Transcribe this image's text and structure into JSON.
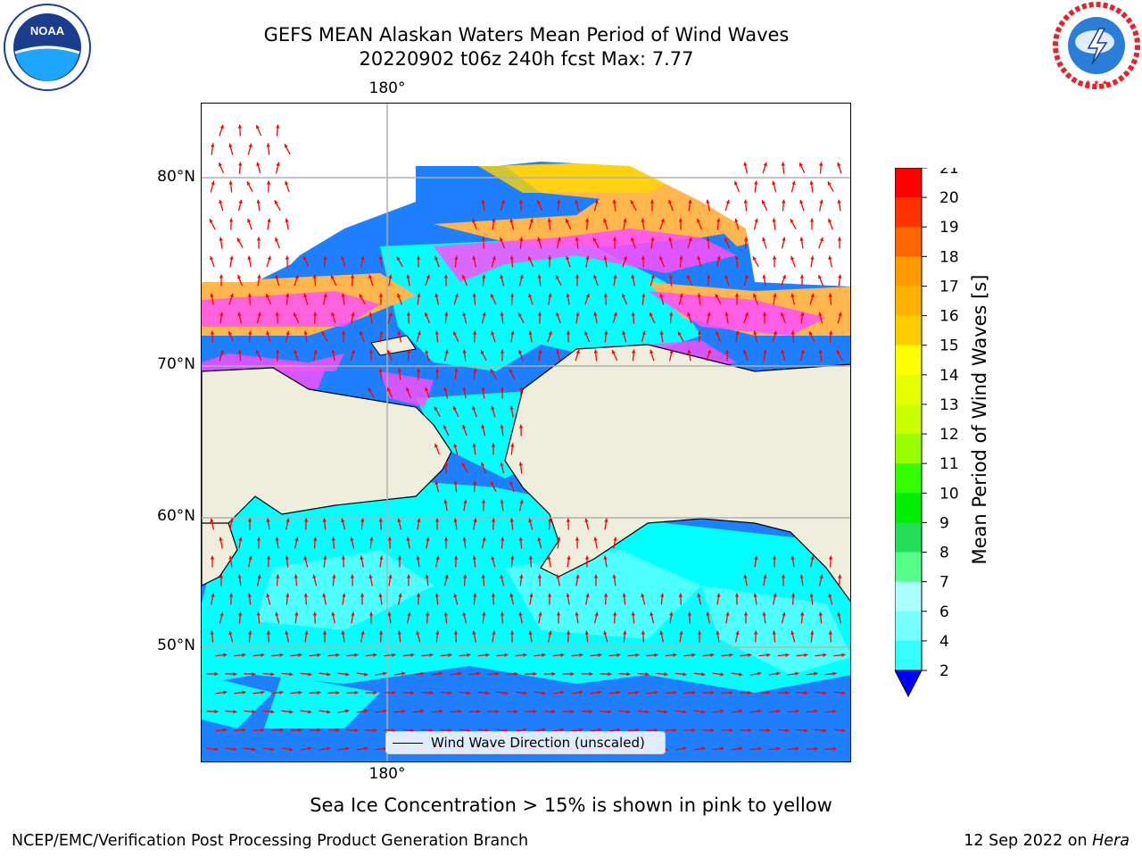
{
  "title": {
    "line1": "GEFS MEAN Alaskan Waters Mean Period of Wind Waves",
    "line2": "20220902 t06z 240h fcst   Max: 7.77"
  },
  "logos": {
    "left": {
      "icon": "noaa-logo-icon",
      "text": "NOAA",
      "ring_text": "NATIONAL OCEANIC AND ATMOSPHERIC ADMINISTRATION · U.S. DEPARTMENT OF COMMERCE"
    },
    "right": {
      "icon": "nws-logo-icon",
      "ring_text": "NATIONAL WEATHER SERVICE"
    }
  },
  "map": {
    "lon_labels": {
      "top": "180°",
      "bottom": "180°"
    },
    "lat_labels": [
      "80°N",
      "70°N",
      "60°N",
      "50°N"
    ],
    "legend_text": "Wind Wave Direction (unscaled)",
    "colors": {
      "ocean_low": "#1e7fff",
      "ocean_mid": "#00ffff",
      "ocean_high": "#4dffff",
      "land": "#efeedc",
      "ice_pink": "#ff4dff",
      "ice_orange": "#ffb74d",
      "ice_yellow": "#ffd700",
      "arrow": "#ff0000"
    }
  },
  "colorbar": {
    "label": "Mean Period of Wind Waves [s]",
    "ticks": [
      "21",
      "20",
      "19",
      "18",
      "17",
      "16",
      "15",
      "14",
      "13",
      "12",
      "11",
      "10",
      "9",
      "8",
      "7",
      "6",
      "4",
      "2"
    ],
    "colors": [
      "#ff0000",
      "#ff3300",
      "#ff6600",
      "#ff9900",
      "#ffb300",
      "#ffcc00",
      "#ffff00",
      "#e6ff00",
      "#ccff00",
      "#99ff00",
      "#33ff00",
      "#00ee00",
      "#22dd55",
      "#55ff88",
      "#aaffff",
      "#77ffff",
      "#33ffff",
      "#00ffff",
      "#1e7fff"
    ],
    "under_color": "#0000ff"
  },
  "note": "Sea Ice Concentration > 15% is shown in pink to yellow",
  "footer": {
    "left": "NCEP/EMC/Verification Post Processing Product Generation Branch",
    "date": "12 Sep 2022 on",
    "host": "Hera"
  }
}
